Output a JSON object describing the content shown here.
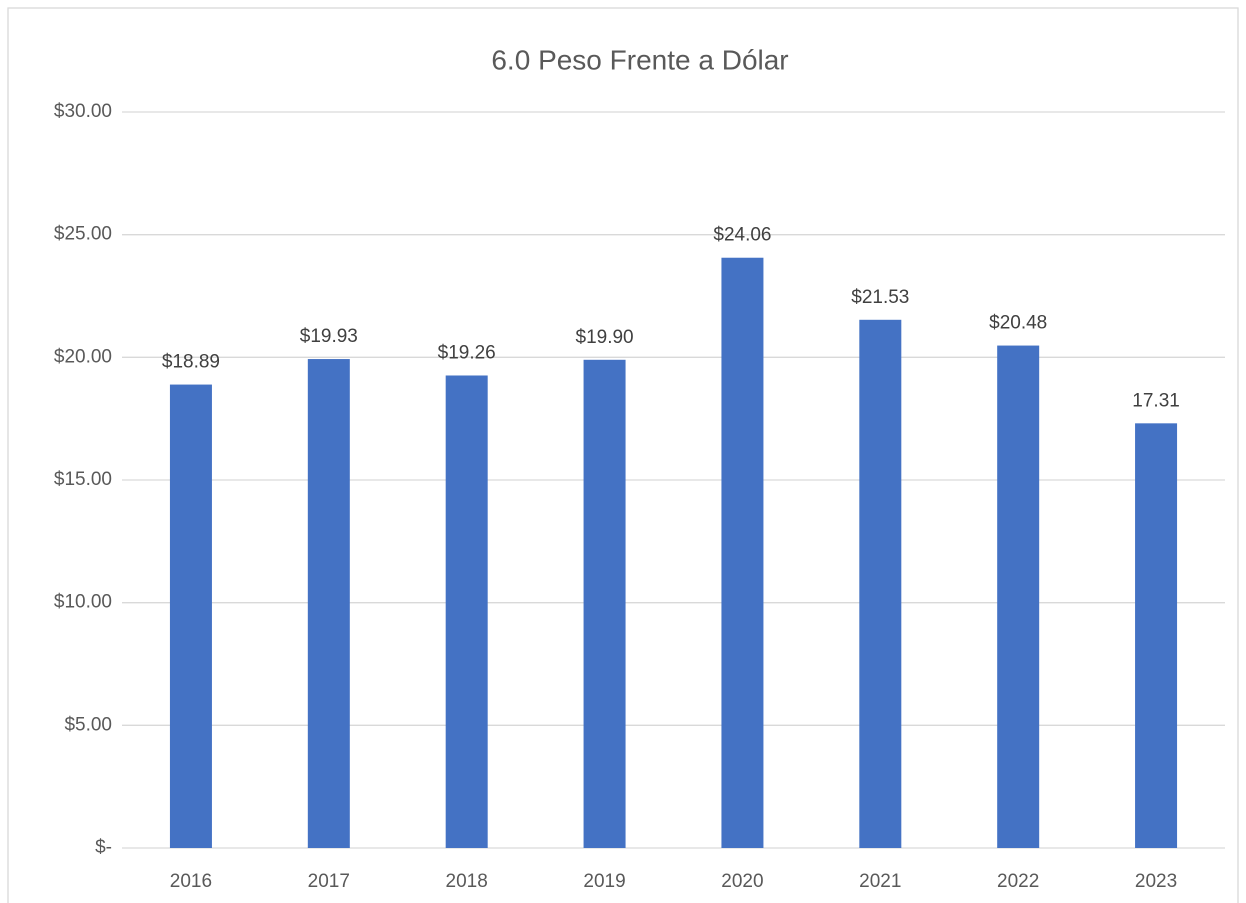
{
  "chart_data": {
    "type": "bar",
    "title": "6.0 Peso Frente a Dólar",
    "categories": [
      "2016",
      "2017",
      "2018",
      "2019",
      "2020",
      "2021",
      "2022",
      "2023"
    ],
    "values": [
      18.89,
      19.93,
      19.26,
      19.9,
      24.06,
      21.53,
      20.48,
      17.31
    ],
    "value_labels": [
      "$18.89",
      "$19.93",
      "$19.26",
      "$19.90",
      "$24.06",
      "$21.53",
      "$20.48",
      "17.31"
    ],
    "color": "#4472c4",
    "ylim": [
      0,
      30
    ],
    "yticks": [
      {
        "value": 0,
        "label": "$-"
      },
      {
        "value": 5,
        "label": "$5.00"
      },
      {
        "value": 10,
        "label": "$10.00"
      },
      {
        "value": 15,
        "label": "$15.00"
      },
      {
        "value": 20,
        "label": "$20.00"
      },
      {
        "value": 25,
        "label": "$25.00"
      },
      {
        "value": 30,
        "label": "$30.00"
      }
    ],
    "grid": true
  }
}
